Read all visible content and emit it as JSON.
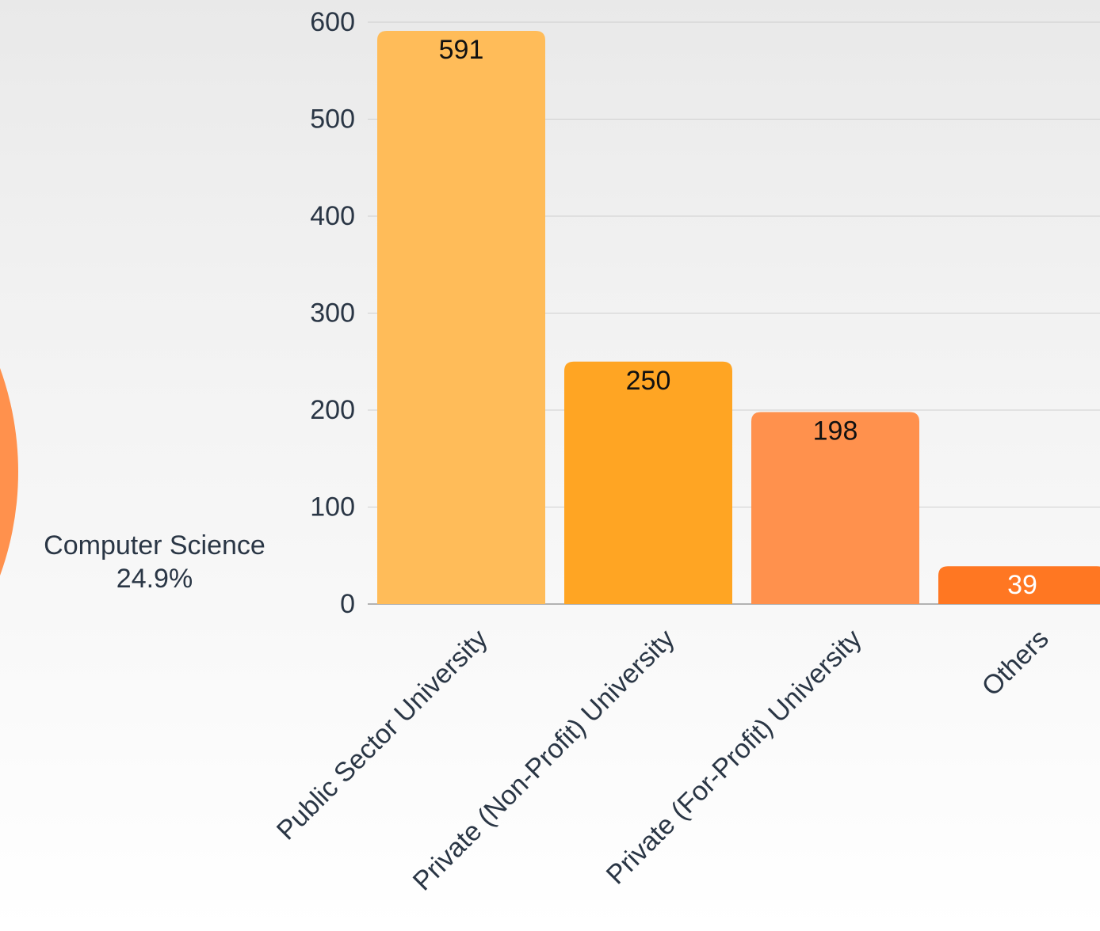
{
  "pie_fragment": {
    "label": "Computer Science",
    "percent": "24.9%",
    "color": "#ff914d"
  },
  "chart_data": {
    "type": "bar",
    "categories": [
      "Public Sector University",
      "Private (Non-Profit) University",
      "Private (For-Profit) University",
      "Others"
    ],
    "values": [
      591,
      250,
      198,
      39
    ],
    "data_labels": [
      "591",
      "250",
      "198",
      "39"
    ],
    "colors": [
      "#ffbc59",
      "#ffa523",
      "#ff914d",
      "#ff7722"
    ],
    "data_label_colors": [
      "#111111",
      "#111111",
      "#111111",
      "#ffffff"
    ],
    "ylim": [
      0,
      600
    ],
    "yticks": [
      0,
      100,
      200,
      300,
      400,
      500,
      600
    ],
    "grid": true,
    "legend": "none"
  }
}
